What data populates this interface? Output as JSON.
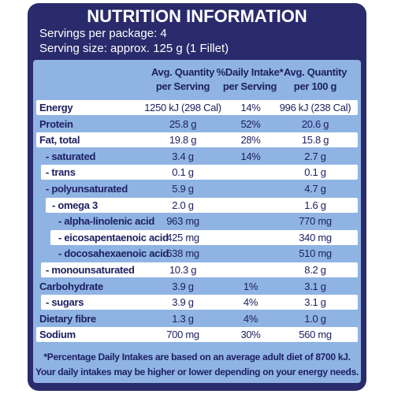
{
  "header": {
    "title": "NUTRITION INFORMATION",
    "servings_per_package": "Servings per package: 4",
    "serving_size": "Serving size: approx. 125 g (1 Fillet)"
  },
  "table": {
    "columns": [
      [
        "Avg. Quantity",
        "per Serving"
      ],
      [
        "%Daily Intake*",
        "per Serving"
      ],
      [
        "Avg. Quantity",
        "per 100 g"
      ]
    ],
    "rows": [
      {
        "name": "Energy",
        "per_serving": "1250 kJ (298 Cal)",
        "daily_intake": "14%",
        "per_100g": "996 kJ (238 Cal)"
      },
      {
        "name": "Protein",
        "per_serving": "25.8 g",
        "daily_intake": "52%",
        "per_100g": "20.6 g"
      },
      {
        "name": "Fat, total",
        "per_serving": "19.8 g",
        "daily_intake": "28%",
        "per_100g": "15.8 g"
      },
      {
        "name": "- saturated",
        "per_serving": "3.4 g",
        "daily_intake": "14%",
        "per_100g": "2.7 g"
      },
      {
        "name": "- trans",
        "per_serving": "0.1 g",
        "per_100g": "0.1 g"
      },
      {
        "name": "- polyunsaturated",
        "per_serving": "5.9 g",
        "per_100g": "4.7 g"
      },
      {
        "name": "- omega 3",
        "per_serving": "2.0 g",
        "per_100g": "1.6 g"
      },
      {
        "name": "- alpha-linolenic acid",
        "per_serving": "963 mg",
        "per_100g": "770 mg"
      },
      {
        "name": "- eicosapentaenoic acid",
        "per_serving": "425 mg",
        "per_100g": "340 mg"
      },
      {
        "name": "- docosahexaenoic acid",
        "per_serving": "638 mg",
        "per_100g": "510 mg"
      },
      {
        "name": "- monounsaturated",
        "per_serving": "10.3 g",
        "per_100g": "8.2 g"
      },
      {
        "name": "Carbohydrate",
        "per_serving": "3.9 g",
        "daily_intake": "1%",
        "per_100g": "3.1 g"
      },
      {
        "name": "- sugars",
        "per_serving": "3.9 g",
        "daily_intake": "4%",
        "per_100g": "3.1 g"
      },
      {
        "name": "Dietary fibre",
        "per_serving": "1.3 g",
        "daily_intake": "4%",
        "per_100g": "1.0 g"
      },
      {
        "name": "Sodium",
        "per_serving": "700 mg",
        "daily_intake": "30%",
        "per_100g": "560 mg"
      }
    ]
  },
  "footer": [
    "*Percentage Daily Intakes are based on an average adult diet of 8700 kJ.",
    "Your daily intakes may be higher or lower depending on your energy needs."
  ]
}
